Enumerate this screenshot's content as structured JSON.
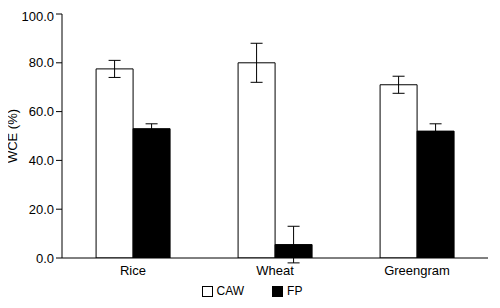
{
  "chart_data": {
    "type": "bar",
    "y_label": "WCE (%)",
    "categories": [
      "Rice",
      "Wheat",
      "Greengram"
    ],
    "series": [
      {
        "name": "CAW",
        "color": "#ffffff",
        "values": [
          77.5,
          80.0,
          71.0
        ],
        "errors": [
          3.5,
          8.0,
          3.5
        ]
      },
      {
        "name": "FP",
        "color": "#000000",
        "values": [
          53.0,
          5.5,
          52.0
        ],
        "errors": [
          2.0,
          7.5,
          3.0
        ]
      }
    ],
    "ylim": [
      0,
      100
    ],
    "yticks": [
      {
        "value": 0,
        "label": "0.0"
      },
      {
        "value": 20,
        "label": "20.0"
      },
      {
        "value": 40,
        "label": "40.0"
      },
      {
        "value": 60,
        "label": "60.0"
      },
      {
        "value": 80,
        "label": "80.0"
      },
      {
        "value": 100,
        "label": "100.0"
      }
    ],
    "grid": false,
    "legend": "bottom"
  }
}
